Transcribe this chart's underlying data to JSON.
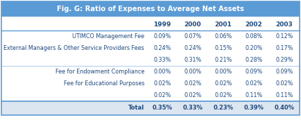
{
  "title": "Fig. G: Ratio of Expenses to Average Net Assets",
  "title_bg": "#5b9bd5",
  "title_text_color": "#ffffff",
  "header_bg": "#dce6f1",
  "total_bg": "#dce6f1",
  "white_bg": "#ffffff",
  "years": [
    "1999",
    "2000",
    "2001",
    "2002",
    "2003"
  ],
  "rows": [
    {
      "label": "UTIMCO Management Fee",
      "values": [
        "0.09%",
        "0.07%",
        "0.06%",
        "0.08%",
        "0.12%"
      ],
      "bold": false
    },
    {
      "label": "External Managers & Other Service Providers Fees",
      "values": [
        "0.24%",
        "0.24%",
        "0.15%",
        "0.20%",
        "0.17%"
      ],
      "bold": false
    },
    {
      "label": "",
      "values": [
        "0.33%",
        "0.31%",
        "0.21%",
        "0.28%",
        "0.29%"
      ],
      "bold": false
    },
    {
      "label": "Fee for Endowment Compliance",
      "values": [
        "0.00%",
        "0.00%",
        "0.00%",
        "0.09%",
        "0.09%"
      ],
      "bold": false
    },
    {
      "label": "Fee for Educational Purposes",
      "values": [
        "0.02%",
        "0.02%",
        "0.02%",
        "0.02%",
        "0.02%"
      ],
      "bold": false
    },
    {
      "label": "",
      "values": [
        "0.02%",
        "0.02%",
        "0.02%",
        "0.11%",
        "0.11%"
      ],
      "bold": false
    },
    {
      "label": "Total",
      "values": [
        "0.35%",
        "0.33%",
        "0.23%",
        "0.39%",
        "0.40%"
      ],
      "bold": true
    }
  ],
  "label_color": "#1f497d",
  "value_color": "#1f497d",
  "border_color": "#5b9bd5",
  "line_color": "#5b9bd5",
  "fig_w": 4.34,
  "fig_h": 1.76,
  "dpi": 100
}
